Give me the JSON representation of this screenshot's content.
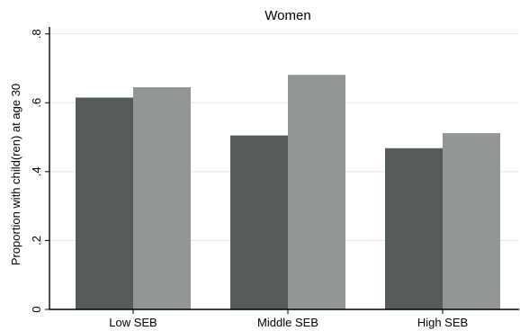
{
  "chart_data": {
    "type": "bar",
    "title": "Women",
    "ylabel": "Proportion with child(ren) at age 30",
    "xlabel": "",
    "categories": [
      "Low SEB",
      "Middle SEB",
      "High SEB"
    ],
    "series": [
      {
        "values": [
          0.615,
          0.505,
          0.468
        ]
      },
      {
        "values": [
          0.645,
          0.681,
          0.512
        ]
      }
    ],
    "ylim": [
      0,
      0.82
    ],
    "yticks": [
      0,
      0.2,
      0.4,
      0.6,
      0.8
    ],
    "ytick_labels": [
      "0",
      ".2",
      ".4",
      ".6",
      ".8"
    ],
    "grid": true,
    "colors": [
      "#555a5b",
      "#929696"
    ]
  }
}
